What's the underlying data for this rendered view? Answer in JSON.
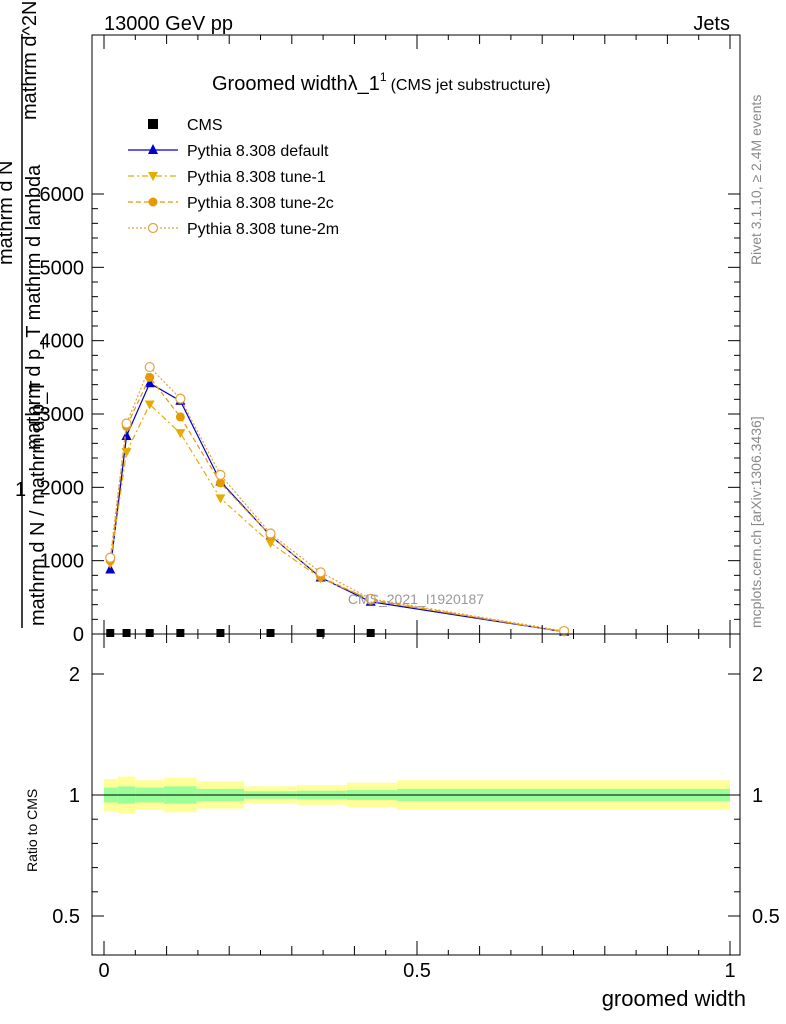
{
  "header": {
    "left": "13000 GeV pp",
    "right": "Jets"
  },
  "title": {
    "main": "Groomed widthλ_1",
    "sup": "1",
    "sub": "(CMS jet substructure)"
  },
  "watermark": "CMS_2021_I1920187",
  "side_text": {
    "upper": "Rivet 3.1.10, ≥ 2.4M events",
    "lower": "mcplots.cern.ch [arXiv:1306.3436]"
  },
  "y_label_main": {
    "one": "1",
    "num": "mathrm d N",
    "den": "mathrm d N / mathrm d p_T",
    "num2": "mathrm d^2N",
    "den2": "mathrm d p_T mathrm d lambda"
  },
  "y_label_ratio": "Ratio to CMS",
  "x_label": "groomed width",
  "colors": {
    "default": "#0000cc",
    "tune1": "#e6ac00",
    "tune2c": "#e69900",
    "tune2m": "#e6a040",
    "band_inner": "#99ff99",
    "band_outer": "#ffff99"
  },
  "chart_data": {
    "type": "line",
    "x_range": [
      0,
      1
    ],
    "y_range": [
      0,
      6200
    ],
    "ratio_range": [
      0.4,
      2.3
    ],
    "x_ticks": [
      "0",
      "0.5",
      "1"
    ],
    "y_ticks": [
      "0",
      "1000",
      "2000",
      "3000",
      "4000",
      "5000",
      "6000"
    ],
    "ratio_ticks": [
      "0.5",
      "1",
      "2"
    ],
    "legend": [
      {
        "key": "cms",
        "label": "CMS"
      },
      {
        "key": "default",
        "label": "Pythia 8.308 default"
      },
      {
        "key": "tune1",
        "label": "Pythia 8.308 tune-1"
      },
      {
        "key": "tune2c",
        "label": "Pythia 8.308 tune-2c"
      },
      {
        "key": "tune2m",
        "label": "Pythia 8.308 tune-2m"
      }
    ],
    "cms": {
      "x": [
        0.01,
        0.036,
        0.073,
        0.122,
        0.186,
        0.266,
        0.346,
        0.426
      ],
      "y": [
        0,
        0,
        0,
        0,
        0,
        0,
        0,
        0
      ]
    },
    "series": [
      {
        "key": "default",
        "x": [
          0.01,
          0.036,
          0.073,
          0.122,
          0.186,
          0.266,
          0.346,
          0.426,
          0.735
        ],
        "y": [
          880,
          2700,
          3420,
          3180,
          2080,
          1340,
          770,
          440,
          30
        ]
      },
      {
        "key": "tune1",
        "x": [
          0.01,
          0.036,
          0.073,
          0.122,
          0.186,
          0.266,
          0.346,
          0.426,
          0.735
        ],
        "y": [
          960,
          2480,
          3130,
          2740,
          1850,
          1240,
          760,
          470,
          30
        ]
      },
      {
        "key": "tune2c",
        "x": [
          0.01,
          0.036,
          0.073,
          0.122,
          0.186,
          0.266,
          0.346,
          0.426,
          0.735
        ],
        "y": [
          1000,
          2830,
          3500,
          2960,
          2060,
          1340,
          780,
          460,
          30
        ]
      },
      {
        "key": "tune2m",
        "x": [
          0.01,
          0.036,
          0.073,
          0.122,
          0.186,
          0.266,
          0.346,
          0.426,
          0.735
        ],
        "y": [
          1040,
          2870,
          3640,
          3210,
          2170,
          1370,
          840,
          480,
          40
        ]
      }
    ],
    "ratio_bands": [
      {
        "x0": 0.0,
        "x1": 0.022,
        "inner": [
          0.94,
          1.06
        ],
        "outer": [
          0.87,
          1.13
        ]
      },
      {
        "x0": 0.022,
        "x1": 0.05,
        "inner": [
          0.93,
          1.07
        ],
        "outer": [
          0.85,
          1.15
        ]
      },
      {
        "x0": 0.05,
        "x1": 0.096,
        "inner": [
          0.94,
          1.06
        ],
        "outer": [
          0.88,
          1.12
        ]
      },
      {
        "x0": 0.096,
        "x1": 0.148,
        "inner": [
          0.93,
          1.07
        ],
        "outer": [
          0.86,
          1.14
        ]
      },
      {
        "x0": 0.148,
        "x1": 0.224,
        "inner": [
          0.95,
          1.05
        ],
        "outer": [
          0.89,
          1.11
        ]
      },
      {
        "x0": 0.224,
        "x1": 0.308,
        "inner": [
          0.97,
          1.03
        ],
        "outer": [
          0.93,
          1.07
        ]
      },
      {
        "x0": 0.308,
        "x1": 0.388,
        "inner": [
          0.965,
          1.035
        ],
        "outer": [
          0.92,
          1.08
        ]
      },
      {
        "x0": 0.388,
        "x1": 0.468,
        "inner": [
          0.96,
          1.04
        ],
        "outer": [
          0.9,
          1.1
        ]
      },
      {
        "x0": 0.468,
        "x1": 1.0,
        "inner": [
          0.95,
          1.05
        ],
        "outer": [
          0.88,
          1.12
        ]
      }
    ]
  }
}
